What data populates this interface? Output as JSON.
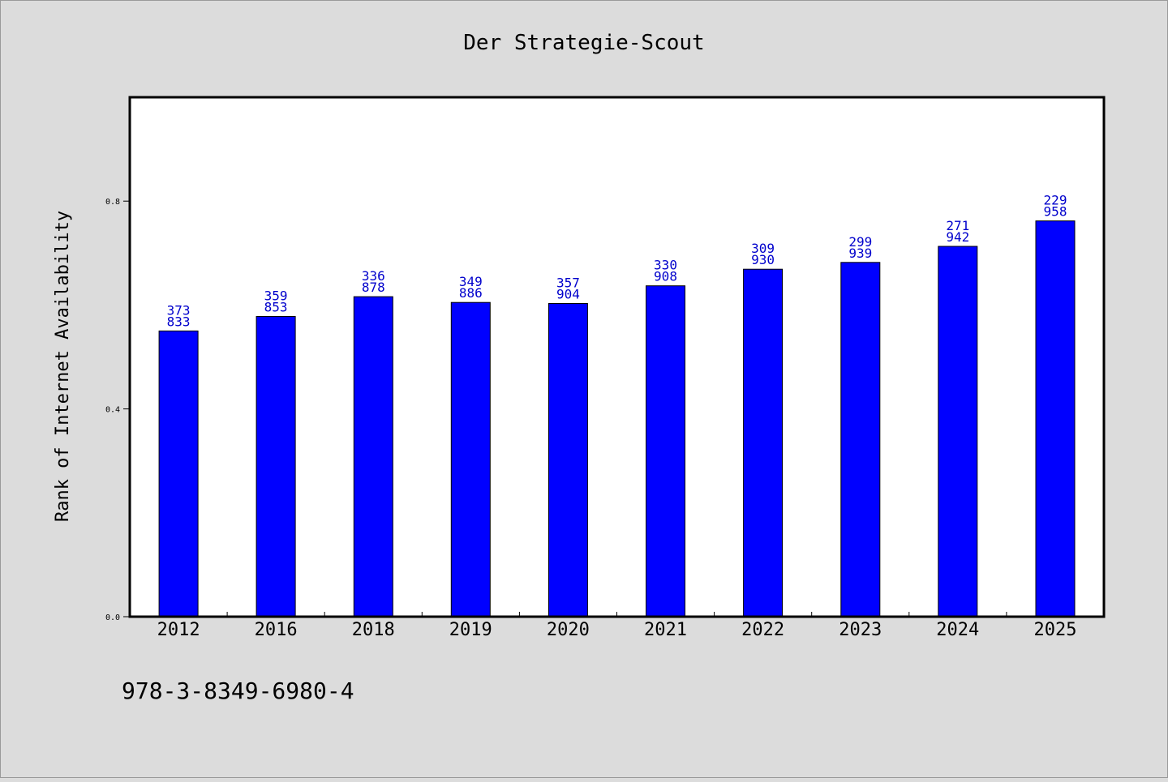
{
  "colors": {
    "page_background": "#dcdcdc",
    "plot_background": "#ffffff",
    "bar_fill": "#0000ff",
    "label_color": "#0000cc",
    "text_color": "#000000"
  },
  "footer": {
    "isbn": "978-3-8349-6980-4"
  },
  "chart_data": {
    "type": "bar",
    "title": "Der Strategie-Scout",
    "xlabel": "",
    "ylabel": "Rank of Internet Availability",
    "categories": [
      "2012",
      "2016",
      "2018",
      "2019",
      "2020",
      "2021",
      "2022",
      "2023",
      "2024",
      "2025"
    ],
    "values": [
      0.55,
      0.578,
      0.616,
      0.605,
      0.603,
      0.637,
      0.669,
      0.682,
      0.713,
      0.762
    ],
    "bar_labels": [
      [
        "373",
        "833"
      ],
      [
        "359",
        "853"
      ],
      [
        "336",
        "878"
      ],
      [
        "349",
        "886"
      ],
      [
        "357",
        "904"
      ],
      [
        "330",
        "908"
      ],
      [
        "309",
        "930"
      ],
      [
        "299",
        "939"
      ],
      [
        "271",
        "942"
      ],
      [
        "229",
        "958"
      ]
    ],
    "ylim": [
      0,
      1.0
    ],
    "yticks": [
      0.0,
      0.4,
      0.8
    ],
    "ytick_labels": [
      "0.0",
      "0.4",
      "0.8"
    ],
    "grid": false,
    "legend": "none"
  }
}
